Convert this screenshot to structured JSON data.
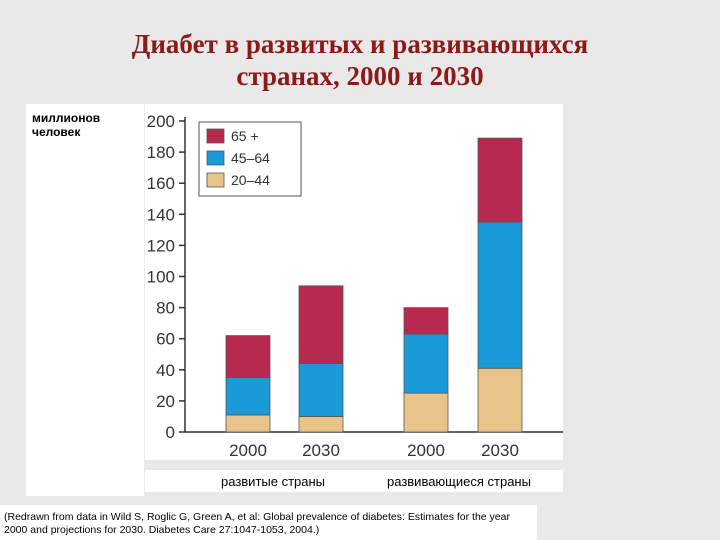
{
  "slide": {
    "title_line1": "Диабет в развитых и развивающихся",
    "title_line2": "странах, 2000 и  2030",
    "y_unit_label": "миллионов\nчеловек",
    "caption_developed": "развитые страны",
    "caption_developing": "развивающиеся страны",
    "source": "(Redrawn from data in Wild S, Roglic G, Green A, et al: Global prevalence of diabetes: Estimates for the year 2000 and projections for 2030. Diabetes Care 27:1047-1053, 2004.)"
  },
  "chart_data": {
    "type": "bar",
    "stacked": true,
    "categories": [
      "2000",
      "2030",
      "2000",
      "2030"
    ],
    "groups": [
      "развитые страны",
      "развивающиеся страны"
    ],
    "series": [
      {
        "name": "20–44",
        "color": "#e8c48a",
        "values": [
          11,
          10,
          25,
          41
        ]
      },
      {
        "name": "45–64",
        "color": "#1a9ad7",
        "values": [
          24,
          34,
          38,
          94
        ]
      },
      {
        "name": "65 +",
        "color": "#b8294f",
        "values": [
          27,
          50,
          17,
          54
        ]
      }
    ],
    "ylim": [
      0,
      200
    ],
    "yticks": [
      0,
      20,
      40,
      60,
      80,
      100,
      120,
      140,
      160,
      180,
      200
    ],
    "ylabel": "миллионов человек",
    "grid": false,
    "legend_position": "top-left"
  }
}
